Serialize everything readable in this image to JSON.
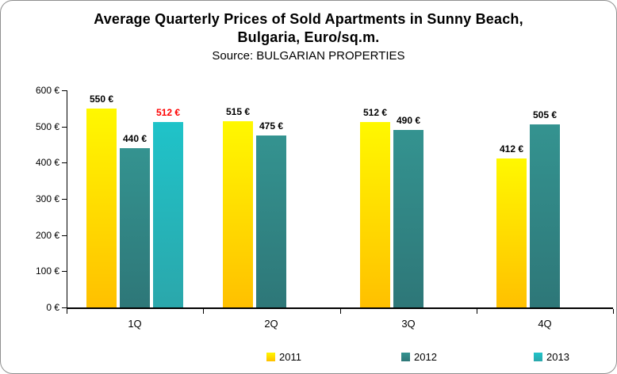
{
  "header": {
    "title_line1": "Average Quarterly Prices of Sold Apartments in Sunny Beach,",
    "title_line2": "Bulgaria, Euro/sq.m.",
    "source": "Source: BULGARIAN PROPERTIES"
  },
  "chart_data": {
    "type": "bar",
    "title": "Average Quarterly Prices of Sold Apartments in Sunny Beach, Bulgaria, Euro/sq.m.",
    "subtitle": "Source: BULGARIAN PROPERTIES",
    "categories": [
      "1Q",
      "2Q",
      "3Q",
      "4Q"
    ],
    "series": [
      {
        "name": "2011",
        "values": [
          550,
          515,
          512,
          412
        ],
        "color_top": "#fff800",
        "color_bottom": "#ffc000",
        "label_color": "#000000"
      },
      {
        "name": "2012",
        "values": [
          440,
          475,
          490,
          505
        ],
        "color_top": "#349390",
        "color_bottom": "#2e7778",
        "label_color": "#000000"
      },
      {
        "name": "2013",
        "values": [
          512,
          null,
          null,
          null
        ],
        "color_top": "#1fc3c9",
        "color_bottom": "#2ba7ab",
        "label_color": "#ff0000"
      }
    ],
    "data_labels": [
      [
        "550 €",
        "515 €",
        "512 €",
        "412 €"
      ],
      [
        "440 €",
        "475 €",
        "490 €",
        "505 €"
      ],
      [
        "512 €",
        null,
        null,
        null
      ]
    ],
    "value_suffix": " €",
    "ylim": [
      0,
      600
    ],
    "y_ticks": [
      {
        "value": 0,
        "label": "0 €"
      },
      {
        "value": 100,
        "label": "100 €"
      },
      {
        "value": 200,
        "label": "200 €"
      },
      {
        "value": 300,
        "label": "300 €"
      },
      {
        "value": 400,
        "label": "400 €"
      },
      {
        "value": 500,
        "label": "500 €"
      },
      {
        "value": 600,
        "label": "600 €"
      }
    ],
    "grid": "off",
    "legend_position": "bottom"
  }
}
